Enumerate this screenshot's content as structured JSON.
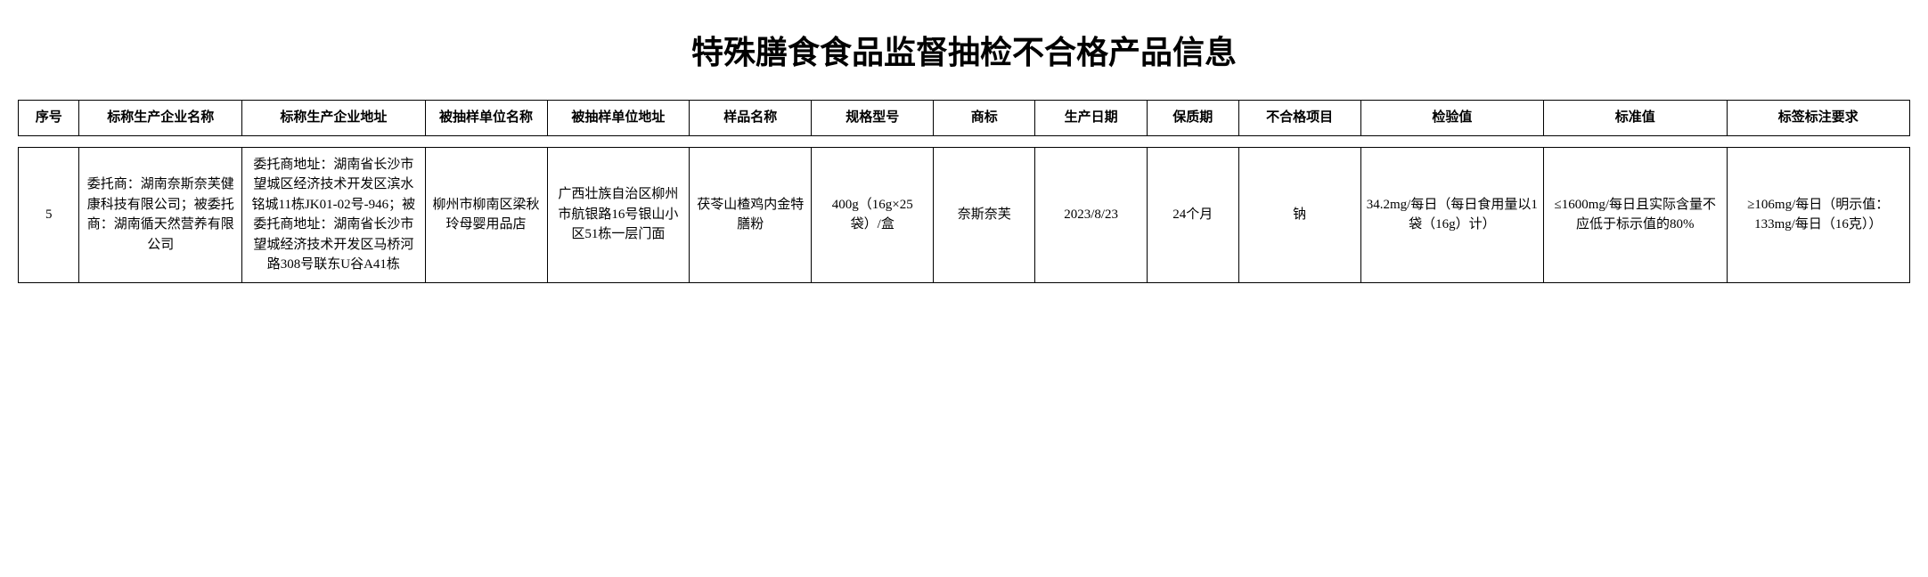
{
  "title": "特殊膳食食品监督抽检不合格产品信息",
  "columns": [
    "序号",
    "标称生产企业名称",
    "标称生产企业地址",
    "被抽样单位名称",
    "被抽样单位地址",
    "样品名称",
    "规格型号",
    "商标",
    "生产日期",
    "保质期",
    "不合格项目",
    "检验值",
    "标准值",
    "标签标注要求"
  ],
  "row": {
    "seq": "5",
    "mfr_name": "委托商：湖南奈斯奈芙健康科技有限公司；被委托商：湖南循天然营养有限公司",
    "mfr_addr": "委托商地址：湖南省长沙市望城区经济技术开发区滨水铭城11栋JK01-02号-946；被委托商地址：湖南省长沙市望城经济技术开发区马桥河路308号联东U谷A41栋",
    "sample_unit": "柳州市柳南区梁秋玲母婴用品店",
    "sample_addr": "广西壮族自治区柳州市航银路16号银山小区51栋一层门面",
    "sample_name": "茯苓山楂鸡内金特膳粉",
    "spec": "400g（16g×25袋）/盒",
    "trademark": "奈斯奈芙",
    "prod_date": "2023/8/23",
    "shelf": "24个月",
    "item": "钠",
    "test_val": "34.2mg/每日（每日食用量以1袋（16g）计）",
    "std_val": "≤1600mg/每日且实际含量不应低于标示值的80%",
    "label_req": "≥106mg/每日（明示值：133mg/每日（16克））"
  }
}
